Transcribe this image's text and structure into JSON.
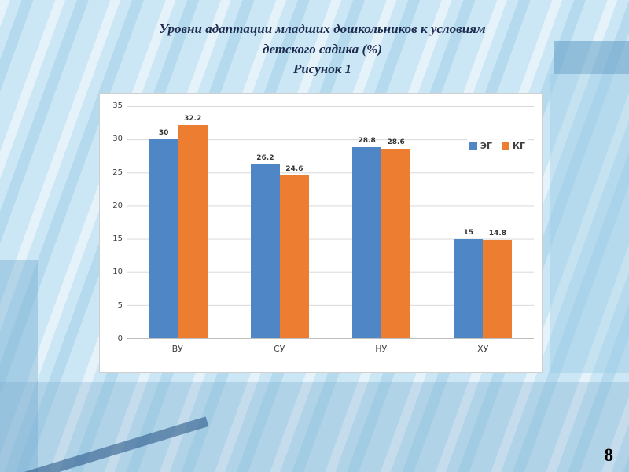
{
  "slide": {
    "title_line1": "Уровни адаптации младших дошкольников к условиям",
    "title_line2": "детского садика (%)",
    "title_line3": "Рисунок 1",
    "page_number": "8"
  },
  "chart_data": {
    "type": "bar",
    "categories": [
      "ВУ",
      "СУ",
      "НУ",
      "ХУ"
    ],
    "series": [
      {
        "name": "ЭГ",
        "color": "#4f86c6",
        "values": [
          30,
          26.2,
          28.8,
          15
        ]
      },
      {
        "name": "КГ",
        "color": "#ed7d31",
        "values": [
          32.2,
          24.6,
          28.6,
          14.8
        ]
      }
    ],
    "title": "Уровни адаптации младших дошкольников к условиям детского садика (%)",
    "xlabel": "",
    "ylabel": "",
    "ylim": [
      0,
      35
    ],
    "yticks": [
      0,
      5,
      10,
      15,
      20,
      25,
      30,
      35
    ],
    "grid": true,
    "legend_position": "right-top"
  }
}
